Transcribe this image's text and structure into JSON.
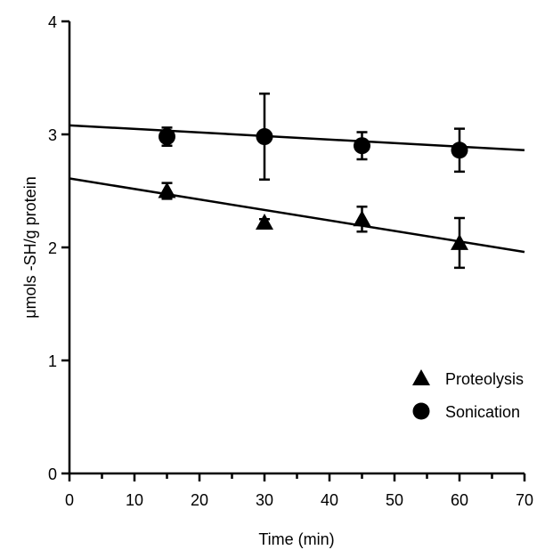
{
  "chart_data": {
    "type": "scatter",
    "xlabel": "Time (min)",
    "ylabel": "μmols -SH/g protein",
    "xlim": [
      0,
      70
    ],
    "xticks": [
      0,
      10,
      20,
      30,
      40,
      50,
      60,
      70
    ],
    "xminorticks": [
      5,
      15,
      25,
      35,
      45,
      55,
      65
    ],
    "ylim": [
      0,
      4
    ],
    "yticks": [
      0,
      1,
      2,
      3,
      4
    ],
    "legend": "lower right",
    "series": [
      {
        "name": "Proteolysis",
        "marker": "triangle",
        "color": "#000000",
        "x": [
          15,
          30,
          45,
          60
        ],
        "values": [
          2.5,
          2.22,
          2.25,
          2.04
        ],
        "errors": [
          0.07,
          0.03,
          0.11,
          0.22
        ],
        "fit": {
          "x": [
            0,
            70
          ],
          "values": [
            2.61,
            1.96
          ]
        }
      },
      {
        "name": "Sonication",
        "marker": "circle",
        "color": "#000000",
        "x": [
          15,
          30,
          45,
          60
        ],
        "values": [
          2.98,
          2.98,
          2.9,
          2.86
        ],
        "errors": [
          0.08,
          0.38,
          0.12,
          0.19
        ],
        "fit": {
          "x": [
            0,
            70
          ],
          "values": [
            3.08,
            2.86
          ]
        }
      }
    ]
  }
}
